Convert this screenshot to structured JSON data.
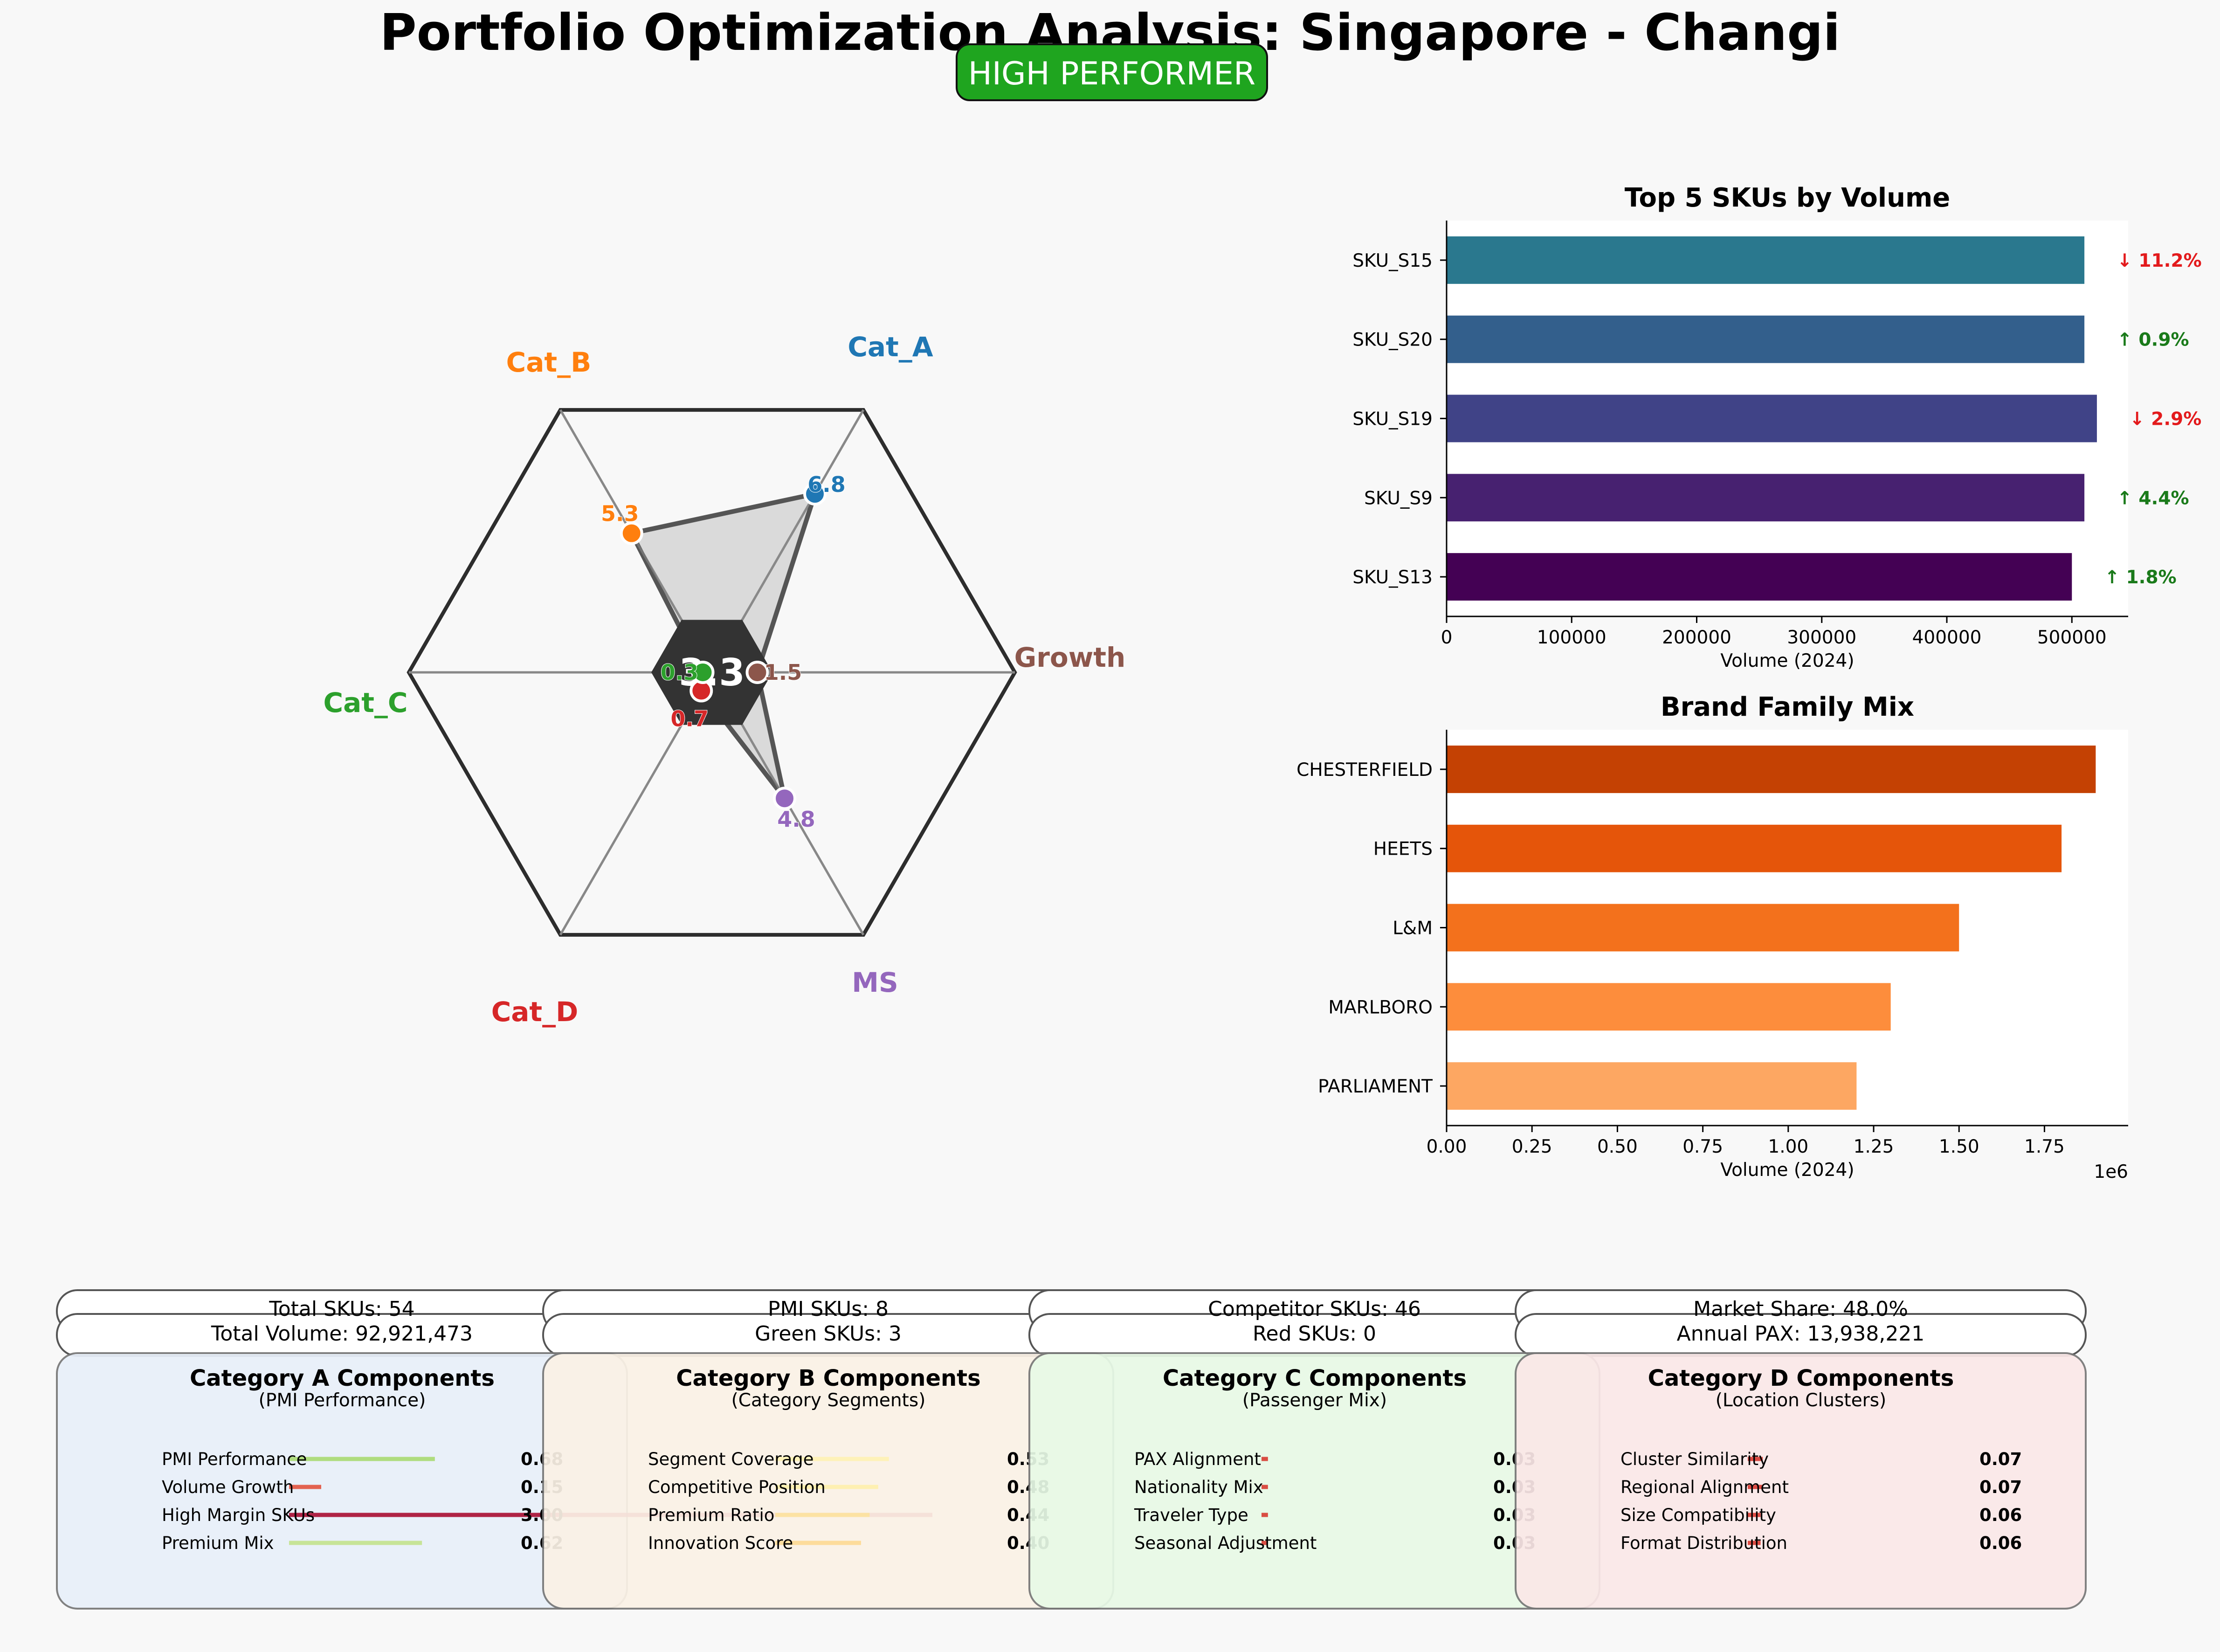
{
  "title": "Portfolio Optimization Analysis: Singapore - Changi",
  "status_badge": {
    "label": "HIGH PERFORMER",
    "color": "#1fa51f"
  },
  "chart_data": [
    {
      "type": "radar",
      "center_value": "3.3",
      "axes": [
        {
          "label": "Cat_A",
          "value": 6.8,
          "color": "#1f77b4"
        },
        {
          "label": "Growth",
          "value": 1.5,
          "color": "#8c564b"
        },
        {
          "label": "MS",
          "value": 4.8,
          "color": "#9467bd"
        },
        {
          "label": "Cat_D",
          "value": 0.7,
          "color": "#d62728"
        },
        {
          "label": "Cat_C",
          "value": 0.3,
          "color": "#2ca02c"
        },
        {
          "label": "Cat_B",
          "value": 5.3,
          "color": "#ff7f0e"
        }
      ],
      "max_value": 10
    },
    {
      "type": "bar",
      "orientation": "horizontal",
      "title": "Top 5 SKUs by Volume",
      "xlabel": "Volume (2024)",
      "categories": [
        "SKU_S15",
        "SKU_S20",
        "SKU_S19",
        "SKU_S9",
        "SKU_S13"
      ],
      "values": [
        510000,
        510000,
        520000,
        510000,
        500000
      ],
      "bar_colors": [
        "#2a788e",
        "#335f8c",
        "#404387",
        "#472170",
        "#440154"
      ],
      "annotations": [
        "↓ 11.2%",
        "↑ 0.9%",
        "↓ 2.9%",
        "↑ 4.4%",
        "↑ 1.8%"
      ],
      "annotation_colors": [
        "#e31a1c",
        "#1a7a1a",
        "#e31a1c",
        "#1a7a1a",
        "#1a7a1a"
      ],
      "xticks": [
        "0",
        "100000",
        "200000",
        "300000",
        "400000",
        "500000"
      ],
      "xlim": [
        0,
        545000
      ]
    },
    {
      "type": "bar",
      "orientation": "horizontal",
      "title": "Brand Family Mix",
      "xlabel": "Volume (2024)",
      "xscale_label": "1e6",
      "categories": [
        "CHESTERFIELD",
        "HEETS",
        "L&M",
        "MARLBORO",
        "PARLIAMENT"
      ],
      "values": [
        1.9,
        1.8,
        1.5,
        1.3,
        1.2
      ],
      "bar_colors": [
        "#c44103",
        "#e5550a",
        "#f3711c",
        "#fd8d3c",
        "#fda762"
      ],
      "xticks": [
        "0.00",
        "0.25",
        "0.50",
        "0.75",
        "1.00",
        "1.25",
        "1.50",
        "1.75"
      ],
      "xlim": [
        0,
        1.995
      ]
    }
  ],
  "stats": [
    [
      "Total SKUs: 54",
      "Total Volume: 92,921,473"
    ],
    [
      "PMI SKUs: 8",
      "Green SKUs: 3"
    ],
    [
      "Competitor SKUs: 46",
      "Red SKUs: 0"
    ],
    [
      "Market Share: 48.0%",
      "Annual PAX: 13,938,221"
    ]
  ],
  "panels": [
    {
      "title": "Category A Components",
      "subtitle": "(PMI Performance)",
      "bg": "#e8f0fa",
      "items": [
        {
          "label": "PMI Performance",
          "value": "0.68",
          "v": 0.68,
          "color": "#a6d96a"
        },
        {
          "label": "Volume Growth",
          "value": "0.15",
          "v": 0.15,
          "color": "#e34a33"
        },
        {
          "label": "High Margin SKUs",
          "value": "3.00",
          "v": 3.0,
          "color": "#a50026"
        },
        {
          "label": "Premium Mix",
          "value": "0.62",
          "v": 0.62,
          "color": "#c2e386"
        }
      ]
    },
    {
      "title": "Category B Components",
      "subtitle": "(Category Segments)",
      "bg": "#fbf2e6",
      "items": [
        {
          "label": "Segment Coverage",
          "value": "0.53",
          "v": 0.53,
          "color": "#fff3b0"
        },
        {
          "label": "Competitive Position",
          "value": "0.48",
          "v": 0.48,
          "color": "#fff0a8"
        },
        {
          "label": "Premium Ratio",
          "value": "0.44",
          "v": 0.44,
          "color": "#fee39a"
        },
        {
          "label": "Innovation Score",
          "value": "0.40",
          "v": 0.4,
          "color": "#fed98e"
        }
      ]
    },
    {
      "title": "Category C Components",
      "subtitle": "(Passenger Mix)",
      "bg": "#e8fae6",
      "items": [
        {
          "label": "PAX Alignment",
          "value": "0.03",
          "v": 0.03,
          "color": "#d73027"
        },
        {
          "label": "Nationality Mix",
          "value": "0.03",
          "v": 0.03,
          "color": "#d73027"
        },
        {
          "label": "Traveler Type",
          "value": "0.03",
          "v": 0.03,
          "color": "#d73027"
        },
        {
          "label": "Seasonal Adjustment",
          "value": "0.03",
          "v": 0.03,
          "color": "#d73027"
        }
      ]
    },
    {
      "title": "Category D Components",
      "subtitle": "(Location Clusters)",
      "bg": "#fbe8e8",
      "items": [
        {
          "label": "Cluster Similarity",
          "value": "0.07",
          "v": 0.07,
          "color": "#d73027"
        },
        {
          "label": "Regional Alignment",
          "value": "0.07",
          "v": 0.07,
          "color": "#d73027"
        },
        {
          "label": "Size Compatibility",
          "value": "0.06",
          "v": 0.06,
          "color": "#d73027"
        },
        {
          "label": "Format Distribution",
          "value": "0.06",
          "v": 0.06,
          "color": "#d73027"
        }
      ]
    }
  ]
}
